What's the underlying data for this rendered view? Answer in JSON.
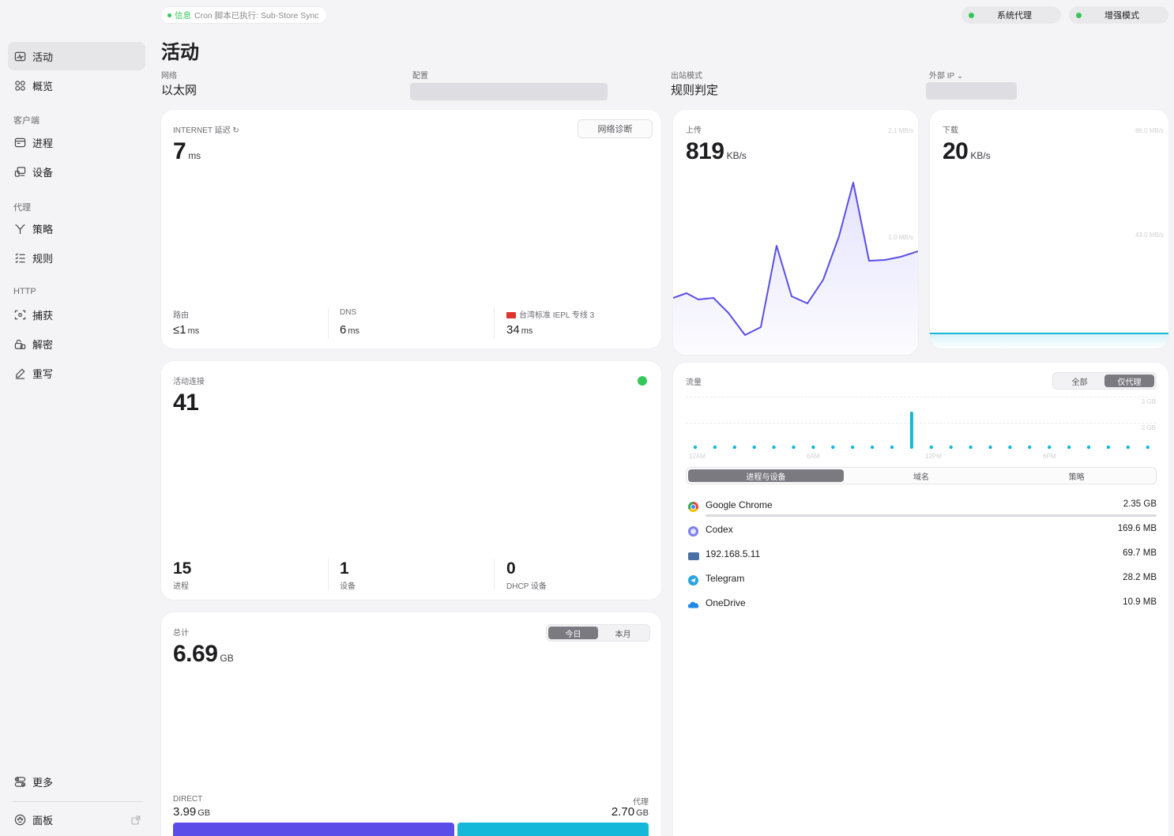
{
  "window": {
    "title": "活动"
  },
  "topbar": {
    "notice_tag": "信息",
    "notice_text": "Cron 脚本已执行: Sub-Store Sync",
    "system_proxy": "系统代理",
    "enhanced_mode": "增强模式"
  },
  "sidebar": {
    "activity": "活动",
    "overview": "概览",
    "section_client": "客户端",
    "process": "进程",
    "devices": "设备",
    "section_proxy": "代理",
    "policy": "策略",
    "rules": "规则",
    "section_http": "HTTP",
    "capture": "捕获",
    "decrypt": "解密",
    "rewrite": "重写",
    "more": "更多",
    "panel": "面板"
  },
  "header": {
    "network_label": "网络",
    "network_value": "以太网",
    "profile_label": "配置",
    "outbound_label": "出站模式",
    "outbound_value": "规则判定",
    "external_ip_label": "外部 IP ⌄"
  },
  "latency_card": {
    "label": "INTERNET 延迟 ↻",
    "value": "7",
    "unit": "ms",
    "diagnose_button": "网络诊断",
    "router_label": "路由",
    "router_value": "≤1",
    "router_unit": "ms",
    "dns_label": "DNS",
    "dns_value": "6",
    "dns_unit": "ms",
    "proxy_label": "台湾标准 IEPL 专线 3",
    "proxy_value": "34",
    "proxy_unit": "ms"
  },
  "upload_card": {
    "label": "上传",
    "value": "819",
    "unit": "KB/s",
    "axis_top": "2.1 MB/s",
    "axis_mid": "1.0 MB/s"
  },
  "download_card": {
    "label": "下载",
    "value": "20",
    "unit": "KB/s",
    "axis_top": "86.0 MB/s",
    "axis_mid": "43.0 MB/s"
  },
  "connections_card": {
    "label": "活动连接",
    "value": "41",
    "processes_value": "15",
    "processes_label": "进程",
    "devices_value": "1",
    "devices_label": "设备",
    "dhcp_value": "0",
    "dhcp_label": "DHCP 设备"
  },
  "total_card": {
    "label": "总计",
    "value": "6.69",
    "unit": "GB",
    "tab_today": "今日",
    "tab_month": "本月",
    "direct_label": "DIRECT",
    "direct_value": "3.99",
    "direct_unit": "GB",
    "proxy_label": "代理",
    "proxy_value": "2.70",
    "proxy_unit": "GB",
    "direct_fraction": 0.596
  },
  "traffic_card": {
    "label": "流量",
    "tab_all": "全部",
    "tab_proxy_only": "仅代理",
    "axis_3gb": "3 GB",
    "axis_2gb": "2 GB",
    "time_labels": [
      "12AM",
      "6AM",
      "12PM",
      "6PM"
    ],
    "sub_tabs": [
      "进程与设备",
      "域名",
      "策略"
    ],
    "items": [
      {
        "name": "Google Chrome",
        "size": "2.35 GB",
        "fraction": 1.0,
        "icon": "chrome-icon"
      },
      {
        "name": "Codex",
        "size": "169.6 MB",
        "fraction": 0.072,
        "icon": "codex-icon"
      },
      {
        "name": "192.168.5.11",
        "size": "69.7 MB",
        "fraction": 0.03,
        "icon": "computer-icon"
      },
      {
        "name": "Telegram",
        "size": "28.2 MB",
        "fraction": 0.012,
        "icon": "telegram-icon"
      },
      {
        "name": "OneDrive",
        "size": "10.9 MB",
        "fraction": 0.005,
        "icon": "onedrive-icon"
      }
    ]
  },
  "colors": {
    "accent_purple": "#5b4ee8",
    "accent_cyan": "#15b8d9",
    "status_green": "#34c759"
  }
}
